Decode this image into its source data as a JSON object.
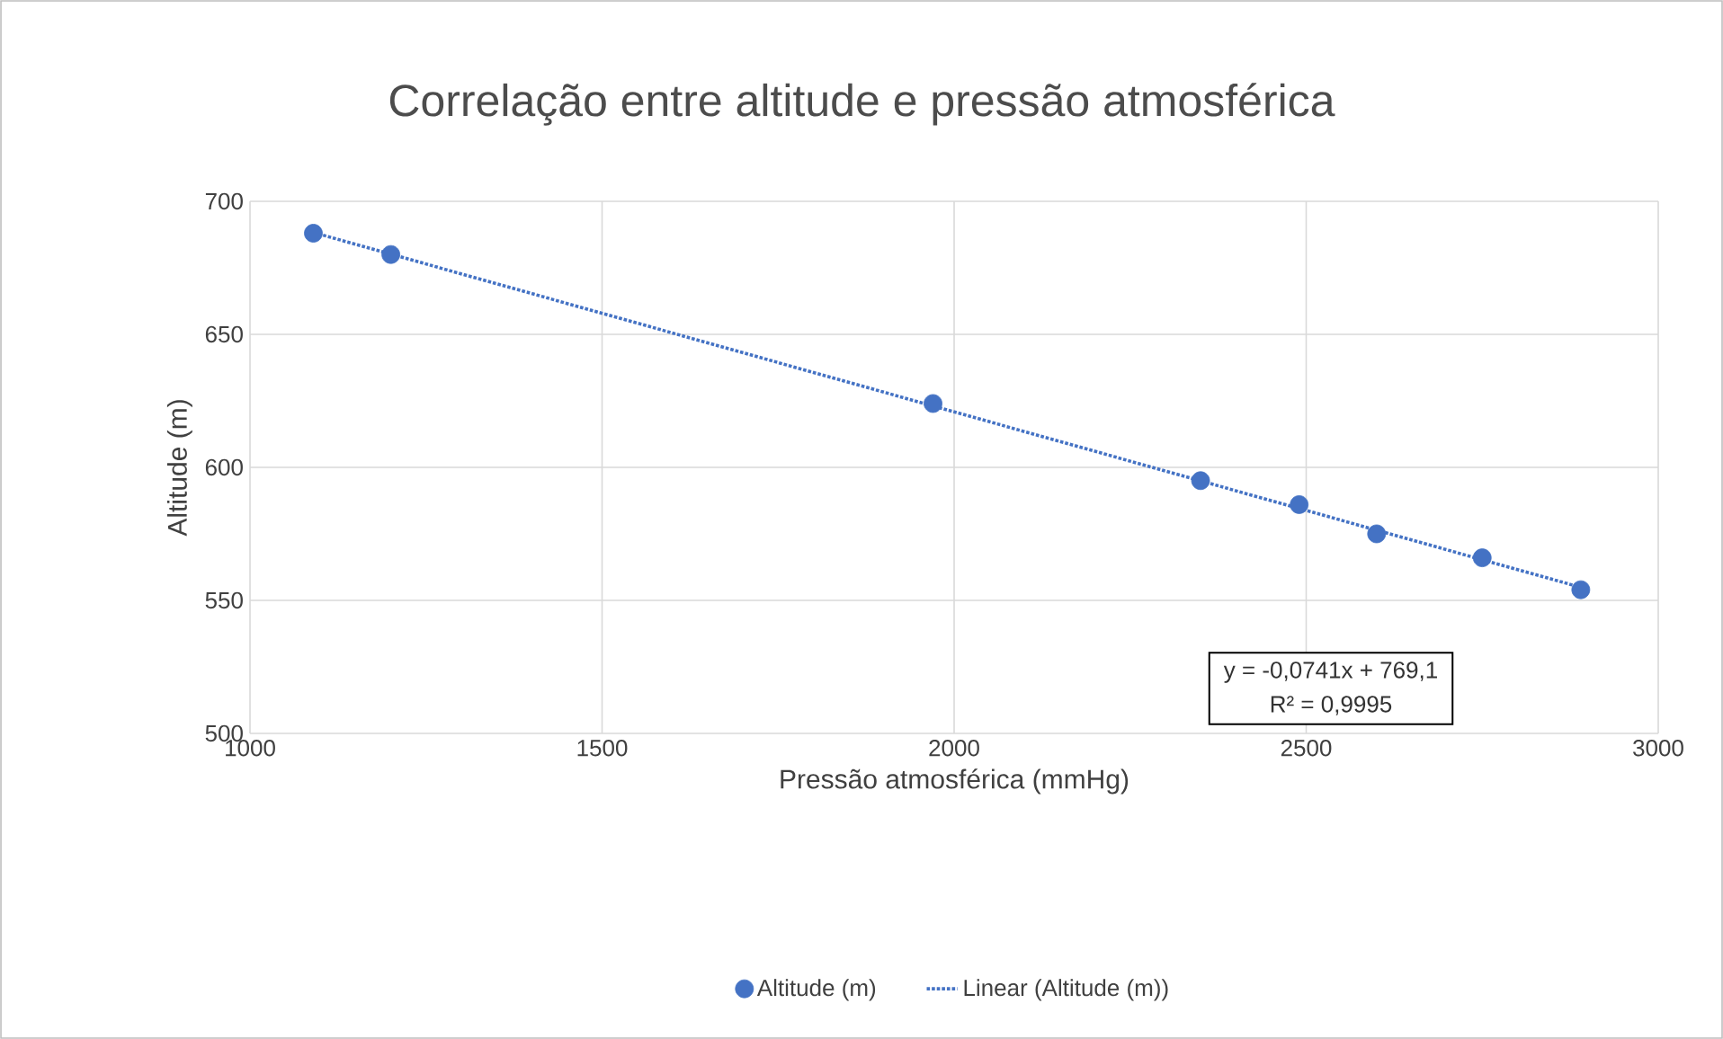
{
  "chart_data": {
    "type": "scatter",
    "title": "Correlação entre altitude e pressão atmosférica",
    "xlabel": "Pressão atmosférica (mmHg)",
    "ylabel": "Altitude (m)",
    "xlim": [
      1000,
      3000
    ],
    "xticks": [
      1000,
      1500,
      2000,
      2500,
      3000
    ],
    "ylim": [
      500,
      700
    ],
    "yticks": [
      500,
      550,
      600,
      650,
      700
    ],
    "grid": true,
    "legend": "bottom",
    "annotations": [
      "y = -0,0741x + 769,1",
      "R² = 0,9995"
    ],
    "series": [
      {
        "name": "Altitude (m)",
        "marker": "circle",
        "color": "#4472c4",
        "x": [
          1090,
          1200,
          1970,
          2350,
          2490,
          2600,
          2750,
          2890
        ],
        "values": [
          688,
          680,
          624,
          595,
          586,
          575,
          566,
          554
        ]
      },
      {
        "name": "Linear (Altitude (m))",
        "type": "line",
        "line_style": "dotted",
        "color": "#4472c4",
        "x": [
          1090,
          2890
        ],
        "values": [
          688.3,
          554.9
        ]
      }
    ]
  }
}
